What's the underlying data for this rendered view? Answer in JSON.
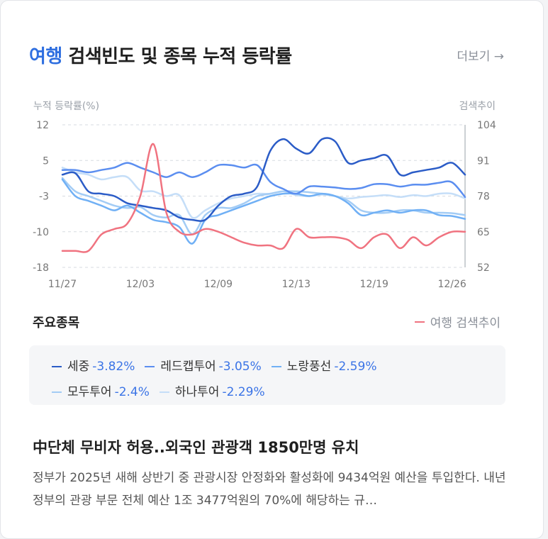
{
  "header": {
    "keyword": "여행",
    "title_rest": " 검색빈도 및 종목 누적 등락률",
    "more_label": "더보기 →"
  },
  "chart_data": {
    "type": "line",
    "left_axis_label": "누적 등락률(%)",
    "right_axis_label": "검색추이",
    "y_left_ticks": [
      "12",
      "5",
      "-3",
      "-10",
      "-18"
    ],
    "y_right_ticks": [
      "104",
      "91",
      "78",
      "65",
      "52"
    ],
    "ylim_left": [
      -18,
      12
    ],
    "ylim_right": [
      52,
      104
    ],
    "x_labels": [
      "11/27",
      "12/03",
      "12/09",
      "12/13",
      "12/19",
      "12/26"
    ],
    "x_label_index": [
      0,
      6,
      12,
      18,
      24,
      30
    ],
    "series": [
      {
        "name": "세중",
        "axis": "left",
        "color": "#2b5cc7",
        "values": [
          1.5,
          1.8,
          -2,
          -2.5,
          -3,
          -4.5,
          -5,
          -5.5,
          -6,
          -7.5,
          -8,
          -8,
          -5,
          -3,
          -2.5,
          -1,
          6.5,
          9,
          7,
          6,
          9,
          8.5,
          4,
          4.5,
          5,
          5.5,
          1.5,
          2,
          2.5,
          3,
          4,
          1.5
        ]
      },
      {
        "name": "레드캡투어",
        "axis": "left",
        "color": "#5b8ef0",
        "values": [
          2.5,
          2.5,
          2,
          2.5,
          3,
          4,
          3,
          2,
          1,
          2,
          1,
          2,
          3.5,
          3.5,
          3,
          3.5,
          0,
          -1.5,
          -2.5,
          -1,
          -1,
          -1.2,
          -1.5,
          -1.3,
          -0.5,
          -0.5,
          -1,
          -0.6,
          -0.6,
          -0.2,
          -0.1,
          -3.2
        ]
      },
      {
        "name": "노랑풍선",
        "axis": "left",
        "color": "#70b0f5",
        "values": [
          0.5,
          -3,
          -4,
          -5,
          -6,
          -5,
          -6.5,
          -8,
          -8.5,
          -9.5,
          -13,
          -8,
          -7,
          -6,
          -5,
          -4,
          -3,
          -2.5,
          -2.5,
          -3,
          -2.5,
          -3,
          -4.5,
          -7,
          -6.5,
          -6,
          -6.5,
          -6,
          -6,
          -7,
          -7.2,
          -7.8
        ]
      },
      {
        "name": "모두투어",
        "axis": "left",
        "color": "#a3ccf5",
        "values": [
          0.8,
          -2,
          -3,
          -4,
          -5,
          -5.5,
          -5.3,
          -7,
          -7.5,
          -7,
          -11,
          -7,
          -5.5,
          -5.5,
          -4.5,
          -3,
          -2.5,
          -2,
          -2,
          -2.2,
          -2.5,
          -3,
          -4,
          -6,
          -6.5,
          -6.5,
          -6,
          -6,
          -6.5,
          -6.5,
          -6.6,
          -7
        ]
      },
      {
        "name": "하나투어",
        "axis": "left",
        "color": "#c5def8",
        "values": [
          3,
          2,
          1.5,
          0.5,
          1,
          1,
          -1.8,
          -2,
          -3,
          -2.8,
          -7.5,
          -6,
          -4.5,
          -3.5,
          -3,
          -2.5,
          -2.5,
          -2,
          -2.8,
          -3,
          -2.7,
          -3,
          -3.5,
          -3.2,
          -3,
          -2.8,
          -3.2,
          -2.8,
          -3,
          -2.5,
          -2.5,
          -3.5
        ]
      },
      {
        "name": "여행 검색추이",
        "axis": "right",
        "color": "#f07380",
        "values": [
          58,
          58,
          58,
          64,
          66,
          68,
          78,
          97,
          72,
          65,
          64,
          66,
          65,
          63,
          61,
          60,
          60,
          59,
          66,
          63,
          63,
          63,
          62,
          59,
          63,
          64,
          59,
          63,
          60,
          63,
          65,
          65
        ]
      }
    ]
  },
  "section_label": "주요종목",
  "trend_legend": "여행 검색추이",
  "stocks": [
    {
      "name": "세중",
      "change": "-3.82%",
      "color": "#2b5cc7"
    },
    {
      "name": "레드캡투어",
      "change": "-3.05%",
      "color": "#5b8ef0"
    },
    {
      "name": "노랑풍선",
      "change": "-2.59%",
      "color": "#70b0f5"
    },
    {
      "name": "모두투어",
      "change": "-2.4%",
      "color": "#a3ccf5"
    },
    {
      "name": "하나투어",
      "change": "-2.29%",
      "color": "#c5def8"
    }
  ],
  "news": {
    "headline": "中단체 무비자 허용..외국인 관광객 1850만명 유치",
    "body": "정부가 2025년 새해 상반기 중 관광시장 안정화와 활성화에 9434억원 예산을 투입한다. 내년 정부의 관광 부문 전체 예산 1조 3477억원의 70%에 해당하는 규…"
  }
}
